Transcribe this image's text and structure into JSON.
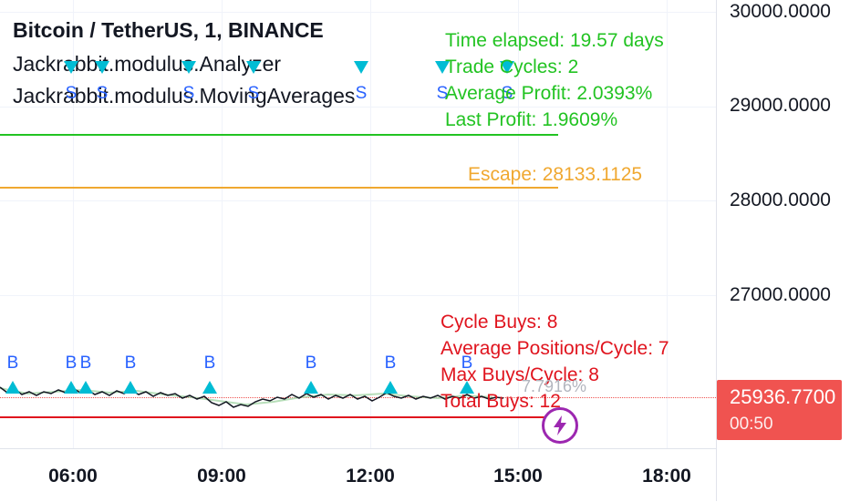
{
  "legend": {
    "title": "Bitcoin / TetherUS, 1, BINANCE",
    "indicator_1": "Jackrabbit.modulus.Analyzer",
    "indicator_2": "Jackrabbit.modulus.MovingAverages"
  },
  "stats_top": {
    "time_elapsed": "Time elapsed: 19.57 days",
    "trade_cycles": "Trade Cycles: 2",
    "average_profit": "Average Profit: 2.0393%",
    "last_profit": "Last Profit: 1.9609%"
  },
  "escape": "Escape: 28133.1125",
  "stats_bottom": {
    "cycle_buys": "Cycle Buys: 8",
    "avg_positions": "Average Positions/Cycle: 7",
    "max_buys": "Max Buys/Cycle: 8",
    "total_buys": "Total Buys: 12",
    "faded_pct": "7.7916%"
  },
  "price_axis": {
    "labels": [
      "30000.0000",
      "29000.0000",
      "28000.0000",
      "27000.0000"
    ],
    "current_price": "25936.7700",
    "countdown": "00:50"
  },
  "time_axis": {
    "labels": [
      "06:00",
      "09:00",
      "12:00",
      "15:00",
      "18:00"
    ]
  },
  "markers": {
    "buy_letter": "B",
    "sell_letter": "S"
  },
  "colors": {
    "green": "#22c322",
    "orange": "#f0a830",
    "red": "#e0141e",
    "marker": "#00bcd4",
    "price_tag": "#f05350",
    "bolt": "#9c27b0"
  },
  "icons": {
    "bolt": "lightning-bolt-icon",
    "buy_marker": "triangle-up-icon",
    "sell_marker": "triangle-down-icon"
  }
}
